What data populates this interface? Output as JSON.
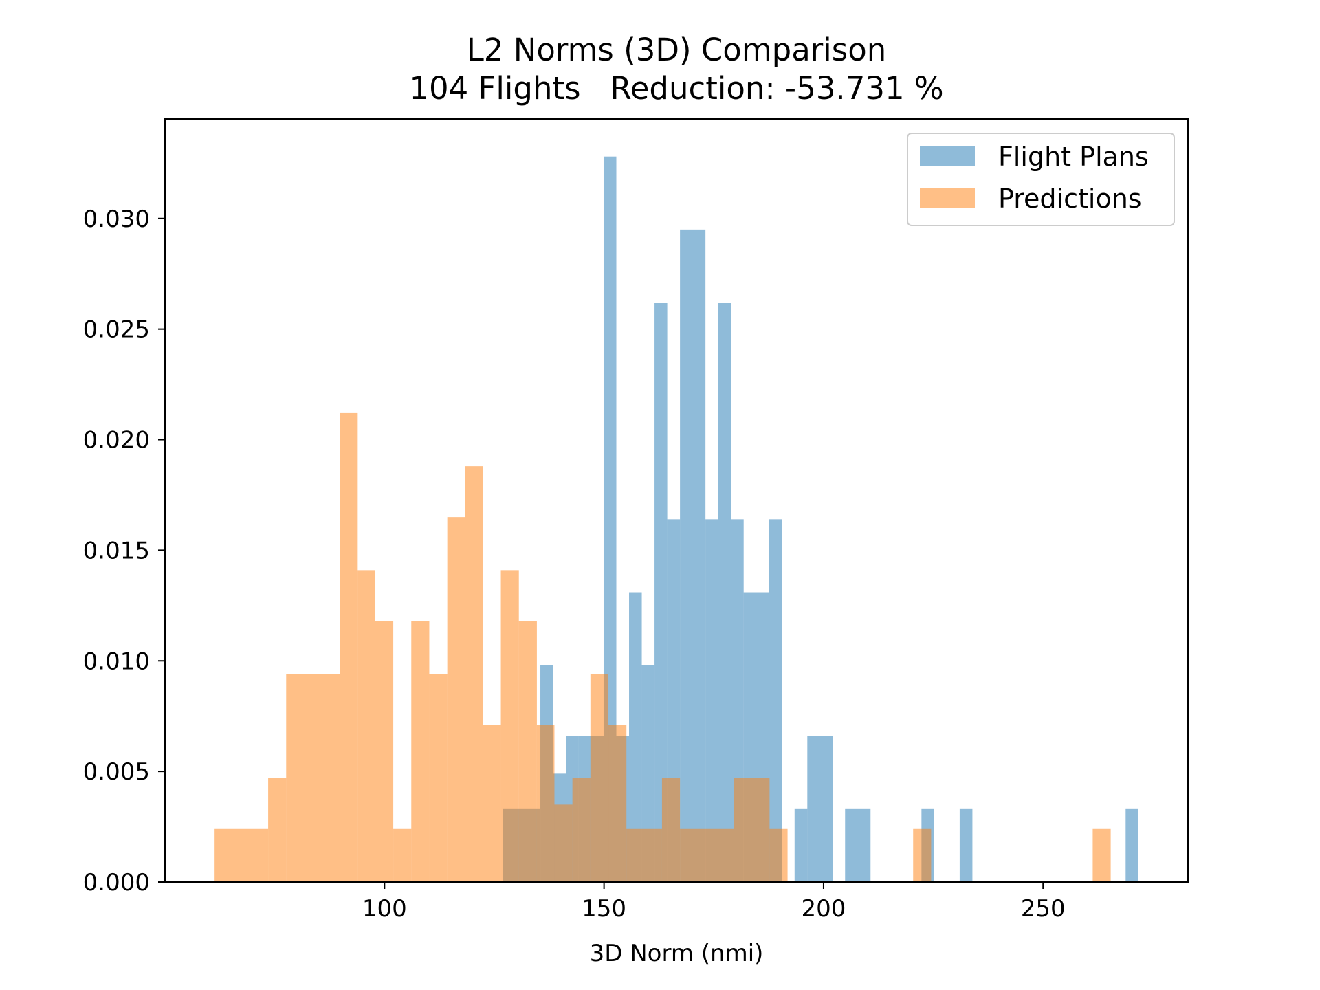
{
  "chart_data": {
    "type": "bar",
    "title": "L2 Norms (3D) Comparison",
    "subtitle": "104 Flights   Reduction: -53.731 %",
    "xlabel": "3D Norm (nmi)",
    "ylabel": "",
    "xlim": [
      50,
      283
    ],
    "ylim": [
      0,
      0.0345
    ],
    "xticks": [
      100,
      150,
      200,
      250
    ],
    "xtick_labels": [
      "100",
      "150",
      "200",
      "250"
    ],
    "yticks": [
      0.0,
      0.005,
      0.01,
      0.015,
      0.02,
      0.025,
      0.03
    ],
    "ytick_labels": [
      "0.000",
      "0.005",
      "0.010",
      "0.015",
      "0.020",
      "0.025",
      "0.030"
    ],
    "grid": false,
    "legend_position": "top-right",
    "series": [
      {
        "name": "Flight Plans",
        "color": "#1f77b4",
        "opacity": 0.5,
        "bins": [
          {
            "x0": 126.9,
            "x1": 135.5,
            "y": 0.0033
          },
          {
            "x0": 135.5,
            "x1": 138.4,
            "y": 0.0098
          },
          {
            "x0": 138.4,
            "x1": 141.3,
            "y": 0.0049
          },
          {
            "x0": 141.3,
            "x1": 144.2,
            "y": 0.0066
          },
          {
            "x0": 144.2,
            "x1": 149.9,
            "y": 0.0066
          },
          {
            "x0": 149.9,
            "x1": 152.8,
            "y": 0.0328
          },
          {
            "x0": 152.8,
            "x1": 155.7,
            "y": 0.0066
          },
          {
            "x0": 155.7,
            "x1": 158.6,
            "y": 0.0131
          },
          {
            "x0": 158.6,
            "x1": 161.5,
            "y": 0.0098
          },
          {
            "x0": 161.5,
            "x1": 164.4,
            "y": 0.0262
          },
          {
            "x0": 164.4,
            "x1": 167.3,
            "y": 0.0164
          },
          {
            "x0": 167.3,
            "x1": 173.1,
            "y": 0.0295
          },
          {
            "x0": 173.1,
            "x1": 176.0,
            "y": 0.0164
          },
          {
            "x0": 176.0,
            "x1": 178.9,
            "y": 0.0262
          },
          {
            "x0": 178.9,
            "x1": 181.8,
            "y": 0.0164
          },
          {
            "x0": 181.8,
            "x1": 187.6,
            "y": 0.0131
          },
          {
            "x0": 187.6,
            "x1": 190.5,
            "y": 0.0164
          },
          {
            "x0": 193.4,
            "x1": 196.3,
            "y": 0.0033
          },
          {
            "x0": 196.3,
            "x1": 202.1,
            "y": 0.0066
          },
          {
            "x0": 204.9,
            "x1": 210.7,
            "y": 0.0033
          },
          {
            "x0": 222.3,
            "x1": 225.2,
            "y": 0.0033
          },
          {
            "x0": 231.0,
            "x1": 233.9,
            "y": 0.0033
          },
          {
            "x0": 268.8,
            "x1": 271.7,
            "y": 0.0033
          }
        ]
      },
      {
        "name": "Predictions",
        "color": "#ff7f0e",
        "opacity": 0.5,
        "bins": [
          {
            "x0": 61.3,
            "x1": 73.5,
            "y": 0.0024
          },
          {
            "x0": 73.5,
            "x1": 77.6,
            "y": 0.0047
          },
          {
            "x0": 77.6,
            "x1": 89.8,
            "y": 0.0094
          },
          {
            "x0": 89.8,
            "x1": 93.9,
            "y": 0.0212
          },
          {
            "x0": 93.9,
            "x1": 97.9,
            "y": 0.0141
          },
          {
            "x0": 97.9,
            "x1": 102.0,
            "y": 0.0118
          },
          {
            "x0": 102.0,
            "x1": 106.1,
            "y": 0.0024
          },
          {
            "x0": 106.1,
            "x1": 110.2,
            "y": 0.0118
          },
          {
            "x0": 110.2,
            "x1": 114.3,
            "y": 0.0094
          },
          {
            "x0": 114.3,
            "x1": 118.3,
            "y": 0.0165
          },
          {
            "x0": 118.3,
            "x1": 122.4,
            "y": 0.0188
          },
          {
            "x0": 122.4,
            "x1": 126.5,
            "y": 0.0071
          },
          {
            "x0": 126.5,
            "x1": 130.6,
            "y": 0.0141
          },
          {
            "x0": 130.6,
            "x1": 134.7,
            "y": 0.0118
          },
          {
            "x0": 134.7,
            "x1": 138.7,
            "y": 0.0071
          },
          {
            "x0": 138.7,
            "x1": 142.8,
            "y": 0.0035
          },
          {
            "x0": 142.8,
            "x1": 146.9,
            "y": 0.0047
          },
          {
            "x0": 146.9,
            "x1": 151.0,
            "y": 0.0094
          },
          {
            "x0": 151.0,
            "x1": 155.1,
            "y": 0.0071
          },
          {
            "x0": 155.1,
            "x1": 163.2,
            "y": 0.0024
          },
          {
            "x0": 163.2,
            "x1": 167.3,
            "y": 0.0047
          },
          {
            "x0": 167.3,
            "x1": 179.5,
            "y": 0.0024
          },
          {
            "x0": 179.5,
            "x1": 187.7,
            "y": 0.0047
          },
          {
            "x0": 187.7,
            "x1": 191.8,
            "y": 0.0024
          },
          {
            "x0": 220.4,
            "x1": 224.5,
            "y": 0.0024
          },
          {
            "x0": 261.3,
            "x1": 265.4,
            "y": 0.0024
          }
        ]
      }
    ]
  }
}
